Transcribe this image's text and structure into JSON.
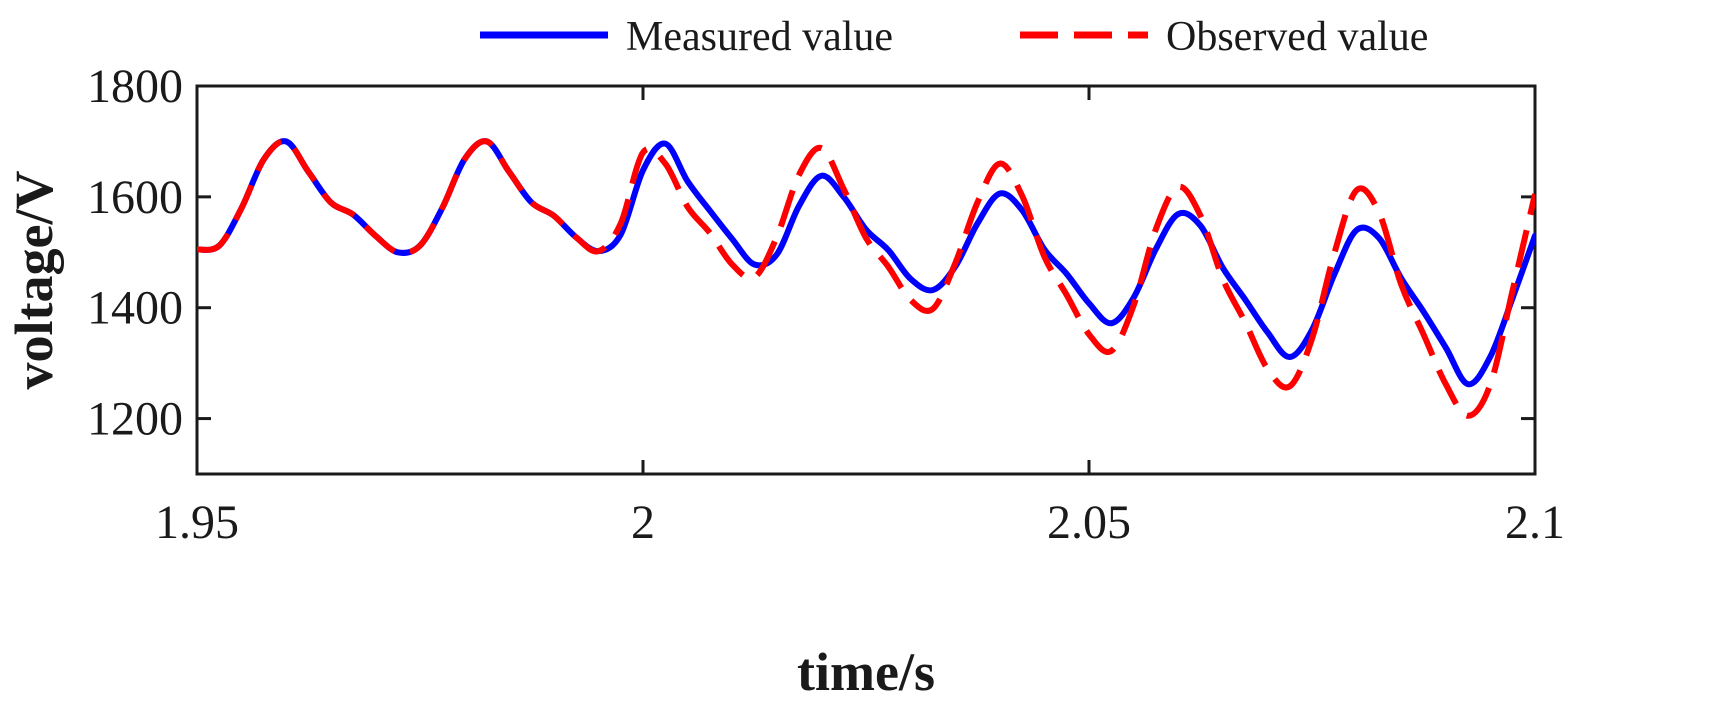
{
  "chart_data": {
    "type": "line",
    "title": "",
    "xlabel": "time/s",
    "ylabel": "voltage/V",
    "xlim": [
      1.95,
      2.1
    ],
    "ylim": [
      1100,
      1800
    ],
    "xticks": [
      1.95,
      2.0,
      2.05,
      2.1
    ],
    "xtick_labels": [
      "1.95",
      "2",
      "2.05",
      "2.1"
    ],
    "yticks": [
      1200,
      1400,
      1600,
      1800
    ],
    "ytick_labels": [
      "1200",
      "1400",
      "1600",
      "1800"
    ],
    "grid": false,
    "legend_position": "top",
    "series": [
      {
        "name": "Measured value",
        "color": "#0000ff",
        "style": "solid",
        "x": [
          1.95,
          1.9525,
          1.955,
          1.9575,
          1.96,
          1.9625,
          1.965,
          1.9675,
          1.97,
          1.9725,
          1.975,
          1.9775,
          1.98,
          1.9825,
          1.985,
          1.9875,
          1.99,
          1.9925,
          1.995,
          1.9975,
          2.0,
          2.0025,
          2.005,
          2.0075,
          2.01,
          2.0125,
          2.015,
          2.0175,
          2.02,
          2.0225,
          2.025,
          2.0275,
          2.03,
          2.0325,
          2.035,
          2.0375,
          2.04,
          2.0425,
          2.045,
          2.0475,
          2.05,
          2.0525,
          2.055,
          2.0575,
          2.06,
          2.0625,
          2.065,
          2.0675,
          2.07,
          2.0725,
          2.075,
          2.0775,
          2.08,
          2.0825,
          2.085,
          2.0875,
          2.09,
          2.0925,
          2.095,
          2.0975,
          2.1
        ],
        "values": [
          1505,
          1512,
          1580,
          1668,
          1700,
          1645,
          1590,
          1568,
          1530,
          1500,
          1512,
          1580,
          1668,
          1700,
          1645,
          1590,
          1566,
          1527,
          1502,
          1532,
          1648,
          1696,
          1628,
          1575,
          1524,
          1478,
          1496,
          1584,
          1638,
          1600,
          1541,
          1504,
          1452,
          1432,
          1474,
          1552,
          1606,
          1576,
          1505,
          1461,
          1408,
          1372,
          1418,
          1506,
          1569,
          1548,
          1472,
          1415,
          1356,
          1311,
          1360,
          1460,
          1540,
          1526,
          1453,
          1393,
          1328,
          1262,
          1312,
          1418,
          1530
        ]
      },
      {
        "name": "Observed value",
        "color": "#ff0000",
        "style": "dashed",
        "x": [
          1.95,
          1.9525,
          1.955,
          1.9575,
          1.96,
          1.9625,
          1.965,
          1.9675,
          1.97,
          1.9725,
          1.975,
          1.9775,
          1.98,
          1.9825,
          1.985,
          1.9875,
          1.99,
          1.9925,
          1.995,
          1.9975,
          2.0,
          2.0025,
          2.005,
          2.0075,
          2.01,
          2.0125,
          2.015,
          2.0175,
          2.02,
          2.0225,
          2.025,
          2.0275,
          2.03,
          2.0325,
          2.035,
          2.0375,
          2.04,
          2.0425,
          2.045,
          2.0475,
          2.05,
          2.0525,
          2.055,
          2.0575,
          2.06,
          2.0625,
          2.065,
          2.0675,
          2.07,
          2.0725,
          2.075,
          2.0775,
          2.08,
          2.0825,
          2.085,
          2.0875,
          2.09,
          2.0925,
          2.095,
          2.0975,
          2.1
        ],
        "values": [
          1505,
          1512,
          1580,
          1668,
          1700,
          1645,
          1590,
          1568,
          1530,
          1500,
          1512,
          1580,
          1668,
          1700,
          1645,
          1590,
          1566,
          1527,
          1502,
          1552,
          1680,
          1660,
          1582,
          1535,
          1478,
          1455,
          1528,
          1640,
          1688,
          1614,
          1526,
          1474,
          1414,
          1398,
          1480,
          1590,
          1660,
          1602,
          1492,
          1423,
          1352,
          1322,
          1404,
          1542,
          1618,
          1566,
          1452,
          1374,
          1290,
          1258,
          1344,
          1498,
          1612,
          1572,
          1442,
          1352,
          1262,
          1205,
          1262,
          1432,
          1605
        ]
      }
    ]
  }
}
